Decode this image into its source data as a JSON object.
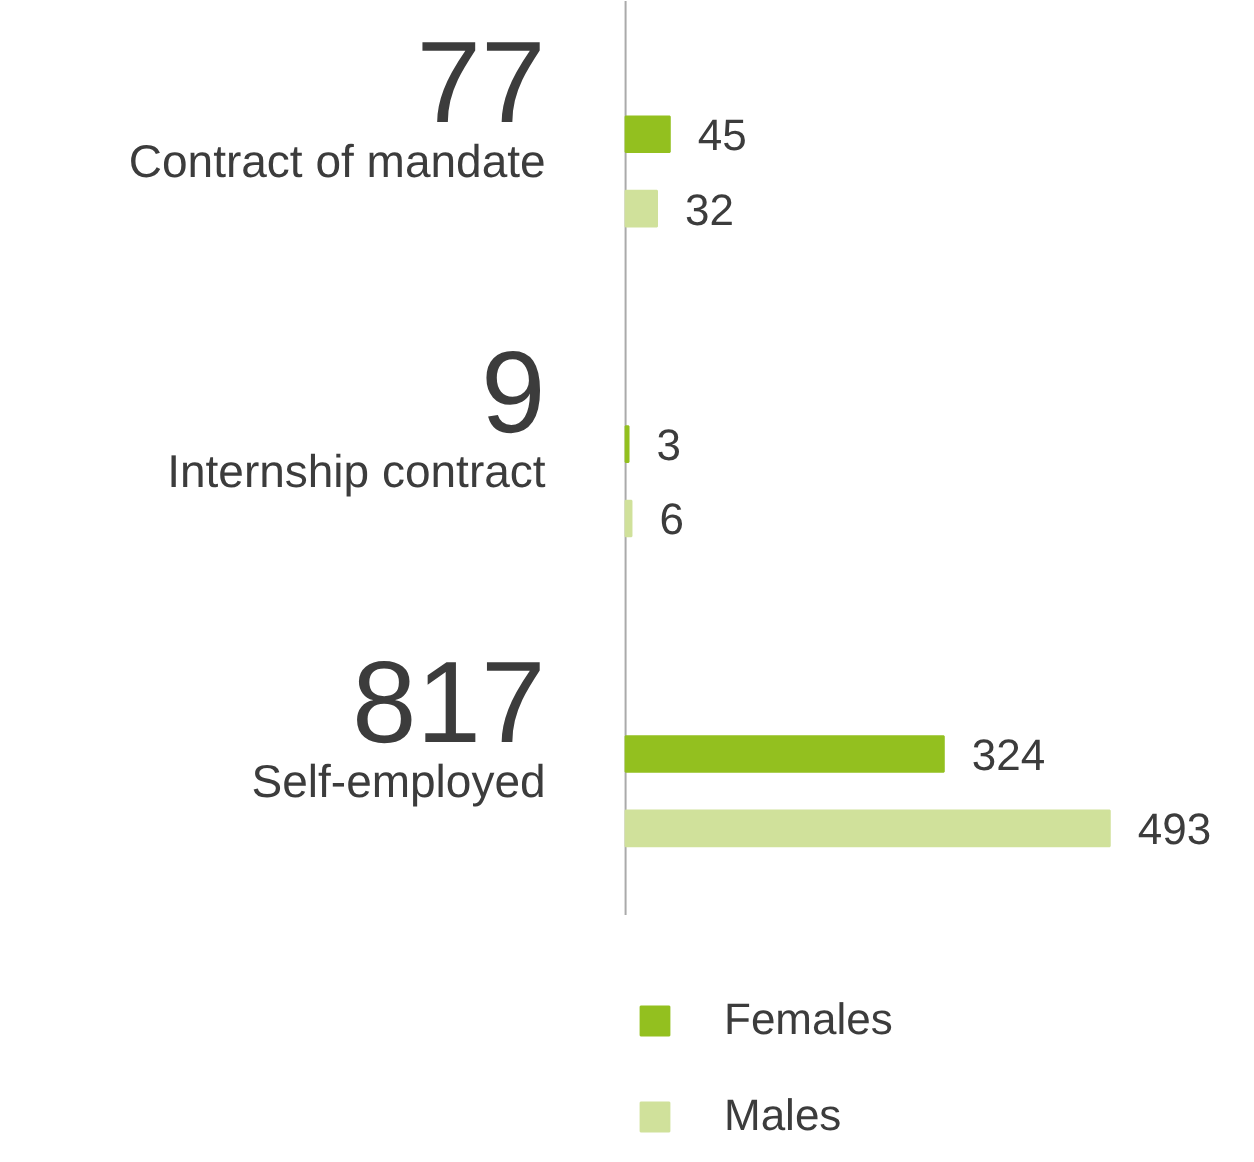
{
  "chart_data": {
    "type": "bar",
    "orientation": "horizontal",
    "categories": [
      "Contract of mandate",
      "Internship contract",
      "Self-employed"
    ],
    "series": [
      {
        "name": "Females",
        "color": "#93c01f",
        "values": [
          45,
          3,
          324
        ]
      },
      {
        "name": "Males",
        "color": "#d0e19b",
        "values": [
          32,
          6,
          493
        ]
      }
    ],
    "totals": [
      "77",
      "9",
      "817"
    ],
    "data_labels": true,
    "legend": "bottom",
    "grid": false
  }
}
